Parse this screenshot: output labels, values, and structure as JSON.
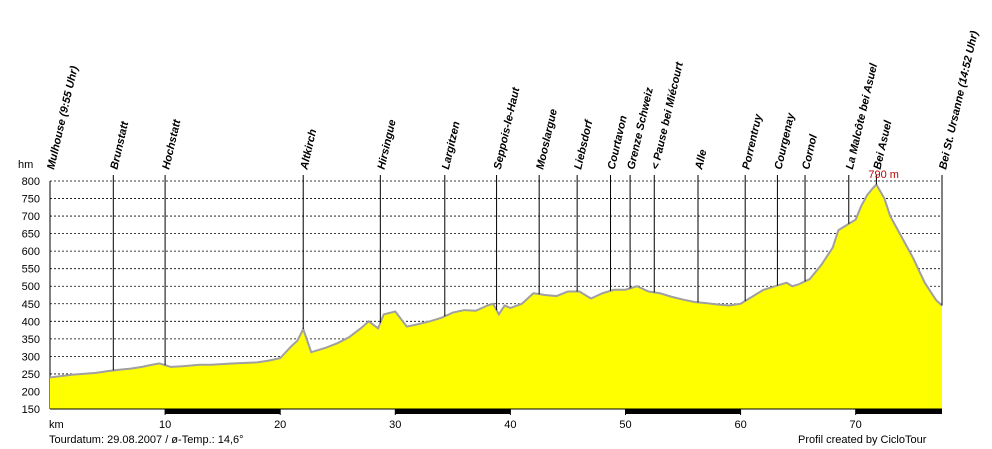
{
  "chart_data": {
    "type": "area",
    "xlabel": "km",
    "ylabel": "hm",
    "xlim": [
      0,
      77.5
    ],
    "ylim": [
      150,
      800
    ],
    "x_ticks": [
      10,
      20,
      30,
      40,
      50,
      60,
      70
    ],
    "y_ticks": [
      800,
      750,
      700,
      650,
      600,
      550,
      500,
      450,
      400,
      350,
      300,
      250,
      200,
      150
    ],
    "fill_color": "#ffff00",
    "line_color": "#a0a0a0",
    "grid": true,
    "max_label": "790 m",
    "max_point": {
      "x": 71.8,
      "y": 790
    },
    "x": [
      0,
      2,
      4,
      5,
      6,
      7,
      8,
      8.7,
      9.5,
      10.5,
      11.5,
      13,
      14,
      16,
      18,
      19,
      20,
      21,
      21.5,
      22,
      22.7,
      23.3,
      24,
      25,
      26,
      27,
      27.7,
      28.5,
      29,
      30,
      31,
      32,
      33,
      34,
      35,
      36,
      37,
      38,
      38.5,
      39,
      39.5,
      40,
      41,
      42,
      43,
      44,
      45,
      46,
      47,
      48,
      49,
      50,
      51,
      52,
      53,
      54,
      55,
      56,
      57,
      58,
      59,
      60,
      61,
      62,
      63,
      64,
      64.5,
      65,
      66,
      67,
      68,
      68.5,
      69,
      70,
      70.5,
      71,
      71.5,
      71.8,
      72.5,
      73,
      74,
      75,
      76,
      77,
      77.5
    ],
    "y": [
      240,
      248,
      253,
      258,
      262,
      265,
      270,
      275,
      280,
      270,
      272,
      276,
      276,
      280,
      283,
      288,
      295,
      330,
      345,
      378,
      312,
      318,
      325,
      338,
      355,
      380,
      400,
      380,
      420,
      428,
      385,
      392,
      400,
      410,
      425,
      432,
      430,
      445,
      450,
      420,
      445,
      438,
      450,
      480,
      475,
      472,
      485,
      485,
      465,
      480,
      490,
      490,
      500,
      485,
      480,
      470,
      462,
      455,
      452,
      448,
      445,
      450,
      470,
      490,
      500,
      510,
      500,
      505,
      520,
      560,
      610,
      660,
      670,
      690,
      730,
      760,
      780,
      790,
      750,
      700,
      640,
      580,
      510,
      460,
      445
    ]
  },
  "places": [
    {
      "name": "Mulhouse (9:55 Uhr)",
      "km": 0
    },
    {
      "name": "Brunstatt",
      "km": 5.5
    },
    {
      "name": "Hochstatt",
      "km": 10
    },
    {
      "name": "Altkirch",
      "km": 22
    },
    {
      "name": "Hirsingue",
      "km": 28.7
    },
    {
      "name": "Largitzen",
      "km": 34.3
    },
    {
      "name": "Seppois-le-Haut",
      "km": 38.8
    },
    {
      "name": "Mooslargue",
      "km": 42.5
    },
    {
      "name": "Liebsdorf",
      "km": 45.8
    },
    {
      "name": "Courtavon",
      "km": 48.7
    },
    {
      "name": "Grenze Schweiz",
      "km": 50.4
    },
    {
      "name": "< Pause bei Miécourt",
      "km": 52.5
    },
    {
      "name": "Alle",
      "km": 56.3
    },
    {
      "name": "Porrentruy",
      "km": 60.4
    },
    {
      "name": "Courgenay",
      "km": 63.2
    },
    {
      "name": "Cornol",
      "km": 65.6
    },
    {
      "name": "La Malcôte bei Asuel",
      "km": 69.4
    },
    {
      "name": "Bei Asuel",
      "km": 71.8
    },
    {
      "name": "Bei St. Ursanne (14:52 Uhr)",
      "km": 77.5
    }
  ],
  "footer": {
    "tour_info": "Tourdatum: 29.08.2007  /  ø-Temp.: 14,6°",
    "credit": "Profil created by CicloTour"
  }
}
